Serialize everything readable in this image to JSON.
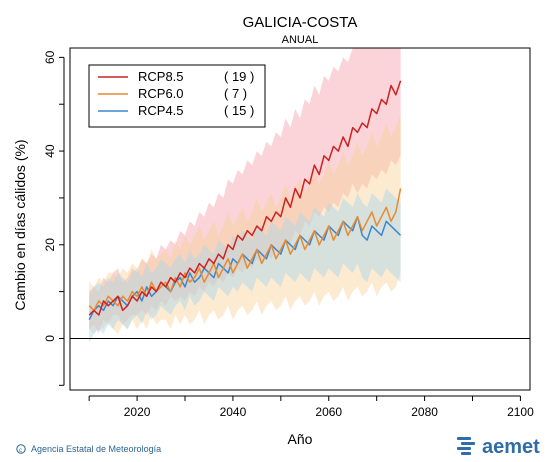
{
  "chart_data": {
    "type": "line",
    "title": "GALICIA-COSTA",
    "subtitle": "ANUAL",
    "xlabel": "Año",
    "ylabel": "Cambio en días cálidos (%)",
    "xlim": [
      2006,
      2102
    ],
    "ylim": [
      -11,
      62
    ],
    "x_ticks": [
      2020,
      2040,
      2060,
      2080,
      2100
    ],
    "y_ticks": [
      0,
      20,
      40,
      60
    ],
    "grid": false,
    "legend_position": "top-left",
    "zero_line": 0,
    "series": [
      {
        "name": "RCP8.5",
        "count_label": "( 19 )",
        "color": "#cc2222",
        "band_color": "#f4a0a8",
        "x_start": 2010,
        "values": [
          5,
          6,
          5,
          8,
          7,
          8,
          9,
          6,
          7,
          9,
          8,
          10,
          9,
          11,
          10,
          12,
          11,
          13,
          12,
          14,
          13,
          15,
          14,
          16,
          15,
          17,
          16,
          18,
          17,
          20,
          19,
          22,
          21,
          23,
          22,
          24,
          23,
          26,
          25,
          27,
          26,
          30,
          28,
          32,
          30,
          34,
          33,
          37,
          35,
          39,
          38,
          41,
          40,
          43,
          41,
          45,
          44,
          46,
          45,
          49,
          48,
          51,
          50,
          54,
          52,
          55
        ],
        "band_low": [
          2,
          3,
          1,
          4,
          3,
          5,
          5,
          3,
          4,
          5,
          5,
          6,
          5,
          7,
          6,
          8,
          7,
          9,
          8,
          9,
          8,
          10,
          9,
          11,
          10,
          12,
          11,
          13,
          12,
          14,
          13,
          15,
          14,
          16,
          15,
          17,
          16,
          18,
          17,
          19,
          18,
          21,
          20,
          23,
          22,
          25,
          24,
          27,
          26,
          28,
          27,
          29,
          28,
          31,
          30,
          33,
          31,
          33,
          32,
          35,
          34,
          36,
          35,
          38,
          37,
          39
        ],
        "band_high": [
          10,
          11,
          10,
          13,
          12,
          14,
          15,
          12,
          13,
          15,
          14,
          17,
          16,
          18,
          17,
          20,
          19,
          21,
          20,
          23,
          22,
          25,
          24,
          27,
          26,
          29,
          28,
          31,
          30,
          34,
          33,
          36,
          35,
          38,
          37,
          40,
          39,
          42,
          41,
          44,
          43,
          47,
          45,
          49,
          47,
          51,
          50,
          54,
          52,
          56,
          55,
          58,
          57,
          60,
          59,
          62,
          62,
          62,
          62,
          62,
          62,
          62,
          62,
          62,
          62,
          62
        ]
      },
      {
        "name": "RCP6.0",
        "count_label": "(  7 )",
        "color": "#e88a2e",
        "band_color": "#f8d09a",
        "x_start": 2010,
        "values": [
          7,
          6,
          8,
          7,
          9,
          8,
          7,
          9,
          8,
          10,
          9,
          11,
          9,
          12,
          10,
          11,
          12,
          10,
          13,
          11,
          14,
          12,
          13,
          15,
          12,
          14,
          16,
          13,
          15,
          17,
          14,
          16,
          18,
          15,
          17,
          19,
          16,
          18,
          20,
          17,
          19,
          21,
          18,
          20,
          22,
          19,
          21,
          23,
          20,
          22,
          24,
          21,
          23,
          25,
          22,
          24,
          26,
          23,
          25,
          27,
          24,
          26,
          28,
          25,
          27,
          32
        ],
        "band_low": [
          2,
          1,
          3,
          2,
          4,
          2,
          1,
          3,
          2,
          4,
          2,
          4,
          2,
          5,
          3,
          4,
          4,
          2,
          5,
          3,
          5,
          3,
          4,
          6,
          3,
          5,
          6,
          4,
          5,
          7,
          4,
          6,
          7,
          5,
          6,
          8,
          5,
          7,
          8,
          6,
          7,
          9,
          6,
          8,
          9,
          7,
          8,
          10,
          7,
          9,
          10,
          8,
          9,
          11,
          8,
          10,
          11,
          9,
          10,
          12,
          9,
          11,
          12,
          10,
          11,
          14
        ],
        "band_high": [
          12,
          11,
          13,
          12,
          14,
          14,
          13,
          15,
          14,
          16,
          15,
          17,
          16,
          19,
          17,
          18,
          19,
          17,
          21,
          19,
          22,
          20,
          22,
          24,
          21,
          23,
          25,
          22,
          24,
          27,
          24,
          26,
          28,
          25,
          27,
          30,
          27,
          29,
          31,
          28,
          30,
          33,
          30,
          32,
          34,
          31,
          33,
          36,
          33,
          35,
          38,
          35,
          37,
          40,
          37,
          39,
          42,
          39,
          41,
          44,
          41,
          43,
          46,
          43,
          45,
          48
        ]
      },
      {
        "name": "RCP4.5",
        "count_label": "( 15 )",
        "color": "#3a87d0",
        "band_color": "#a8d8ea",
        "x_start": 2010,
        "values": [
          4,
          6,
          7,
          6,
          8,
          7,
          9,
          8,
          7,
          9,
          10,
          8,
          11,
          9,
          10,
          12,
          11,
          10,
          12,
          13,
          11,
          14,
          12,
          13,
          15,
          14,
          13,
          16,
          15,
          14,
          17,
          16,
          18,
          17,
          16,
          19,
          18,
          17,
          20,
          19,
          18,
          21,
          20,
          19,
          22,
          21,
          20,
          23,
          22,
          21,
          24,
          23,
          22,
          25,
          24,
          23,
          26,
          22,
          21,
          24,
          23,
          22,
          25,
          24,
          23,
          22
        ],
        "band_low": [
          -1,
          1,
          2,
          1,
          3,
          2,
          4,
          3,
          2,
          4,
          5,
          3,
          6,
          4,
          5,
          7,
          6,
          5,
          7,
          8,
          6,
          9,
          7,
          8,
          10,
          9,
          8,
          11,
          10,
          9,
          11,
          10,
          12,
          11,
          10,
          13,
          12,
          11,
          13,
          12,
          11,
          14,
          13,
          12,
          14,
          13,
          12,
          15,
          14,
          13,
          15,
          14,
          13,
          16,
          15,
          14,
          16,
          13,
          12,
          15,
          14,
          13,
          15,
          14,
          13,
          12
        ],
        "band_high": [
          9,
          11,
          12,
          11,
          13,
          12,
          14,
          13,
          12,
          14,
          15,
          13,
          16,
          14,
          15,
          17,
          16,
          15,
          17,
          18,
          16,
          19,
          17,
          18,
          20,
          19,
          18,
          21,
          20,
          19,
          22,
          21,
          23,
          22,
          21,
          24,
          23,
          22,
          25,
          24,
          23,
          26,
          25,
          24,
          27,
          26,
          25,
          28,
          27,
          26,
          29,
          28,
          27,
          30,
          29,
          28,
          31,
          29,
          28,
          31,
          30,
          29,
          32,
          31,
          30,
          29
        ]
      }
    ]
  },
  "footer": {
    "credit": "Agencia Estatal de Meteorología",
    "logo": "aemet"
  }
}
